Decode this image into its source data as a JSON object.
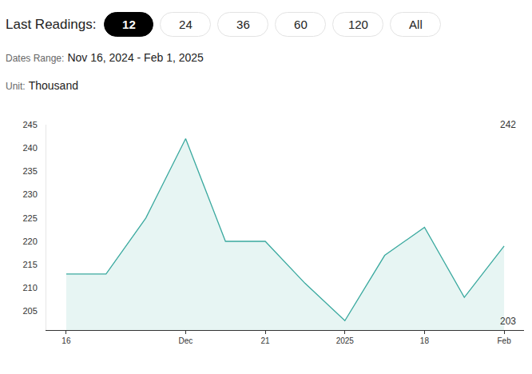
{
  "page": {
    "controls": {
      "label": "Last Readings:",
      "buttons": [
        "12",
        "24",
        "36",
        "60",
        "120",
        "All"
      ],
      "active": "12"
    },
    "dates_range": {
      "label": "Dates Range:",
      "text": "Nov 16, 2024 - Feb 1, 2025"
    },
    "unit": {
      "label": "Unit:",
      "text": "Thousand"
    }
  },
  "chart_data": {
    "type": "area",
    "categories": [
      "16",
      null,
      null,
      "Dec",
      null,
      "21",
      null,
      "2025",
      null,
      "18",
      null,
      "Feb"
    ],
    "values": [
      213,
      213,
      225,
      242,
      220,
      220,
      211,
      203,
      217,
      223,
      208,
      219
    ],
    "color": "#3aa99f",
    "ylim": [
      201,
      245
    ],
    "yticks": [
      205,
      210,
      215,
      220,
      225,
      230,
      235,
      240,
      245
    ],
    "grid": false,
    "annotations": [
      "242",
      "203"
    ]
  }
}
